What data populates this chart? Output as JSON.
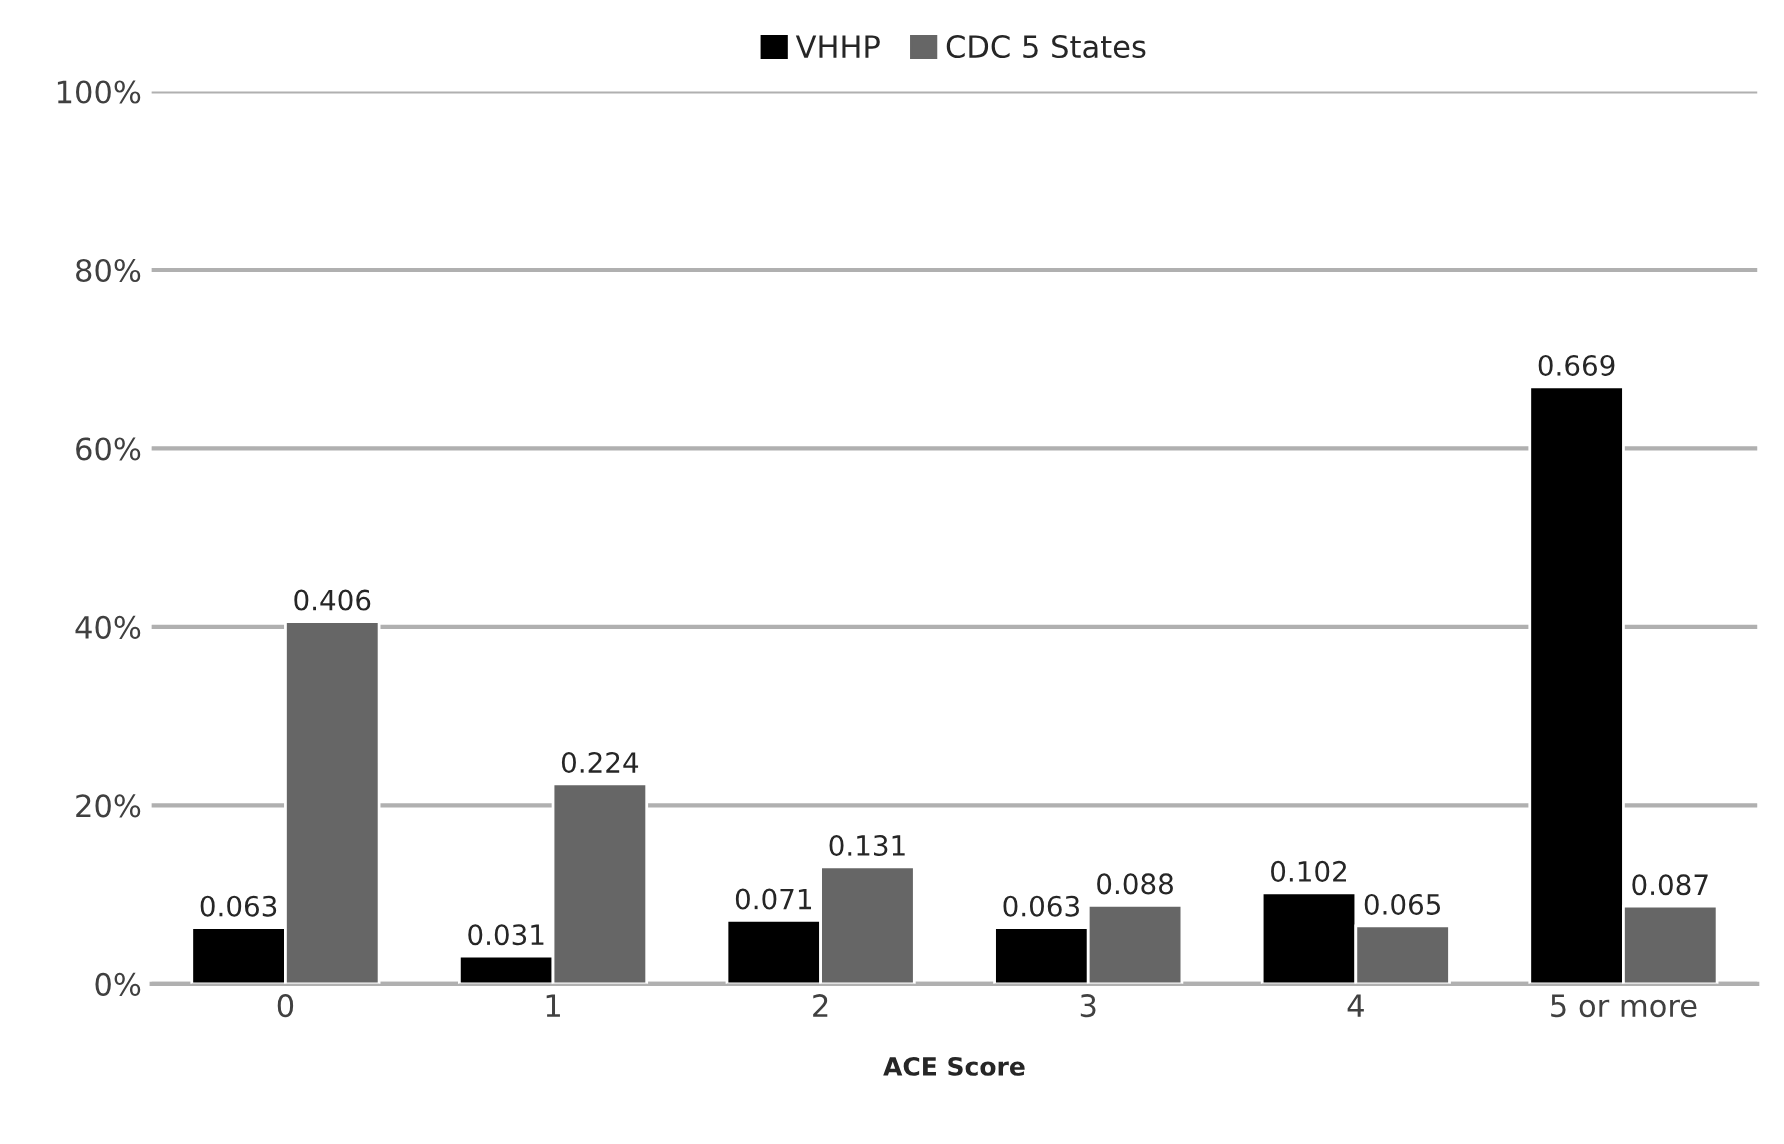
{
  "chart_data": {
    "type": "bar",
    "xlabel": "ACE Score",
    "categories": [
      "0",
      "1",
      "2",
      "3",
      "4",
      "5 or more"
    ],
    "series": [
      {
        "name": "VHHP",
        "color": "#000000",
        "values": [
          0.063,
          0.031,
          0.071,
          0.063,
          0.102,
          0.669
        ]
      },
      {
        "name": "CDC 5 States",
        "color": "#666666",
        "values": [
          0.406,
          0.224,
          0.131,
          0.088,
          0.065,
          0.087
        ]
      }
    ],
    "ylim": [
      0,
      1
    ],
    "yticks": [
      {
        "value": 0,
        "label": "0%"
      },
      {
        "value": 0.2,
        "label": "20%"
      },
      {
        "value": 0.4,
        "label": "40%"
      },
      {
        "value": 0.6,
        "label": "60%"
      },
      {
        "value": 0.8,
        "label": "80%"
      },
      {
        "value": 1,
        "label": "100%"
      }
    ],
    "grid": "y",
    "legend": "top",
    "data_labels": true
  }
}
